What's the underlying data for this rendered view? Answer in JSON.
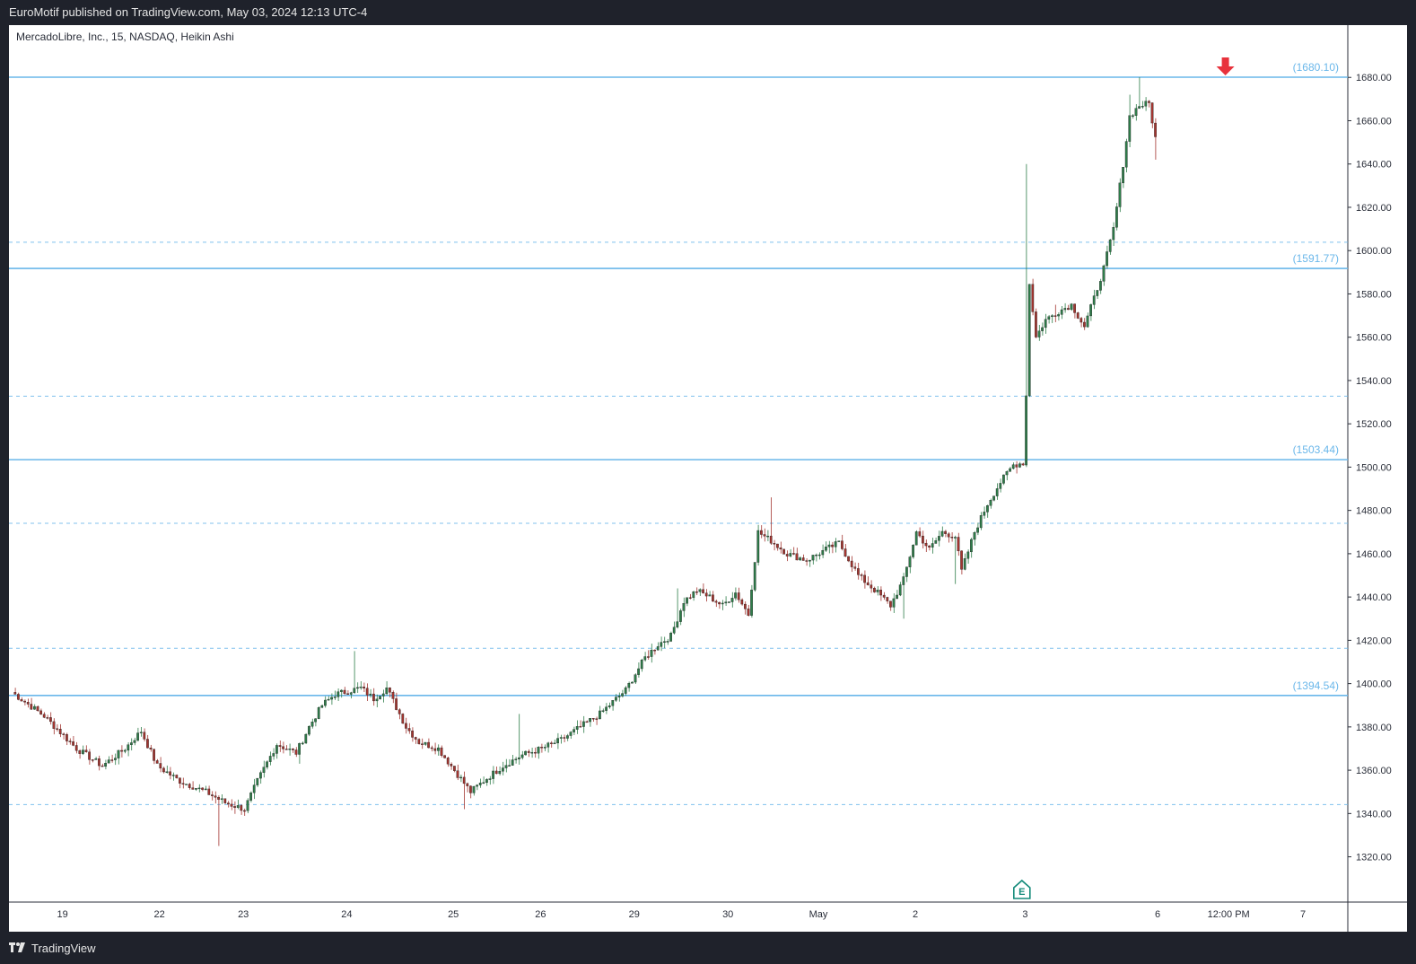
{
  "header": {
    "published": "EuroMotif published on TradingView.com, May 03, 2024 12:13 UTC-4"
  },
  "symbol": {
    "title": "MercadoLibre, Inc., 15, NASDAQ, Heikin Ashi"
  },
  "footer": {
    "brand": "TradingView"
  },
  "colors": {
    "up": "#2f7d4a",
    "down": "#a33530",
    "level_line": "#6ab7ea",
    "dashed_line": "#6ab7ea",
    "level_label": "#6ab7ea",
    "arrow": "#e8323c",
    "earnings": "#138a7a"
  },
  "chart_data": {
    "type": "candlestick",
    "title": "MercadoLibre, Inc., 15, NASDAQ, Heikin Ashi",
    "ylim": [
      1302,
      1700
    ],
    "y_ticks": [
      1320,
      1340,
      1360,
      1380,
      1400,
      1420,
      1440,
      1460,
      1480,
      1500,
      1520,
      1540,
      1560,
      1580,
      1600,
      1620,
      1640,
      1660,
      1680
    ],
    "y_tick_labels": [
      "1320.00",
      "1340.00",
      "1360.00",
      "1380.00",
      "1400.00",
      "1420.00",
      "1440.00",
      "1460.00",
      "1480.00",
      "1500.00",
      "1520.00",
      "1540.00",
      "1560.00",
      "1580.00",
      "1600.00",
      "1620.00",
      "1640.00",
      "1660.00",
      "1680.00"
    ],
    "x_labels": [
      "19",
      "22",
      "23",
      "24",
      "25",
      "26",
      "29",
      "30",
      "May",
      "2",
      "3",
      "6",
      "12:00 PM",
      "7"
    ],
    "x_label_index": [
      16,
      46,
      72,
      104,
      137,
      164,
      193,
      222,
      250,
      280,
      314,
      355,
      377,
      400
    ],
    "n_bars": 405,
    "grid": false,
    "legend": "none",
    "price_path": [
      [
        0,
        1396
      ],
      [
        10,
        1385
      ],
      [
        20,
        1370
      ],
      [
        28,
        1362
      ],
      [
        35,
        1370
      ],
      [
        40,
        1378
      ],
      [
        45,
        1362
      ],
      [
        52,
        1355
      ],
      [
        60,
        1350
      ],
      [
        66,
        1345
      ],
      [
        72,
        1342
      ],
      [
        76,
        1355
      ],
      [
        82,
        1372
      ],
      [
        88,
        1368
      ],
      [
        92,
        1380
      ],
      [
        96,
        1390
      ],
      [
        100,
        1395
      ],
      [
        108,
        1398
      ],
      [
        112,
        1393
      ],
      [
        116,
        1398
      ],
      [
        122,
        1380
      ],
      [
        126,
        1373
      ],
      [
        132,
        1370
      ],
      [
        137,
        1360
      ],
      [
        142,
        1350
      ],
      [
        146,
        1355
      ],
      [
        152,
        1362
      ],
      [
        158,
        1367
      ],
      [
        164,
        1370
      ],
      [
        170,
        1374
      ],
      [
        176,
        1380
      ],
      [
        182,
        1386
      ],
      [
        190,
        1397
      ],
      [
        196,
        1412
      ],
      [
        200,
        1418
      ],
      [
        204,
        1422
      ],
      [
        208,
        1438
      ],
      [
        212,
        1443
      ],
      [
        216,
        1440
      ],
      [
        220,
        1436
      ],
      [
        224,
        1442
      ],
      [
        228,
        1432
      ],
      [
        231,
        1470
      ],
      [
        235,
        1466
      ],
      [
        240,
        1460
      ],
      [
        246,
        1457
      ],
      [
        252,
        1462
      ],
      [
        256,
        1465
      ],
      [
        262,
        1450
      ],
      [
        268,
        1442
      ],
      [
        272,
        1436
      ],
      [
        276,
        1448
      ],
      [
        280,
        1470
      ],
      [
        284,
        1462
      ],
      [
        288,
        1470
      ],
      [
        292,
        1468
      ],
      [
        294,
        1452
      ],
      [
        298,
        1470
      ],
      [
        302,
        1483
      ],
      [
        306,
        1493
      ],
      [
        310,
        1501
      ],
      [
        313,
        1502
      ],
      [
        314,
        1533
      ],
      [
        315,
        1585
      ],
      [
        317,
        1560
      ],
      [
        320,
        1568
      ],
      [
        324,
        1572
      ],
      [
        328,
        1575
      ],
      [
        332,
        1565
      ],
      [
        335,
        1578
      ],
      [
        338,
        1592
      ],
      [
        341,
        1610
      ],
      [
        344,
        1640
      ],
      [
        346,
        1662
      ],
      [
        349,
        1667
      ],
      [
        352,
        1668
      ],
      [
        354,
        1652
      ]
    ],
    "spikes": {
      "314": 1640,
      "323": 1575,
      "346": 1672,
      "349": 1680.1,
      "354": 1642,
      "235": 1486,
      "106": 1415,
      "89": 1363,
      "140": 1342,
      "64": 1325,
      "206": 1444,
      "276": 1430,
      "292": 1446,
      "157": 1386
    },
    "levels_solid": [
      {
        "value": 1680.1,
        "label": "(1680.10)"
      },
      {
        "value": 1591.77,
        "label": "(1591.77)"
      },
      {
        "value": 1503.44,
        "label": "(1503.44)"
      },
      {
        "value": 1394.54,
        "label": "(1394.54)"
      }
    ],
    "levels_dashed": [
      1603.85,
      1532.75,
      1474.03,
      1416.33,
      1344.12
    ],
    "annotations": [
      {
        "type": "arrow-down",
        "at_index": 376,
        "value": 1680.1
      },
      {
        "type": "earnings",
        "label": "E",
        "at_index": 313
      }
    ]
  }
}
